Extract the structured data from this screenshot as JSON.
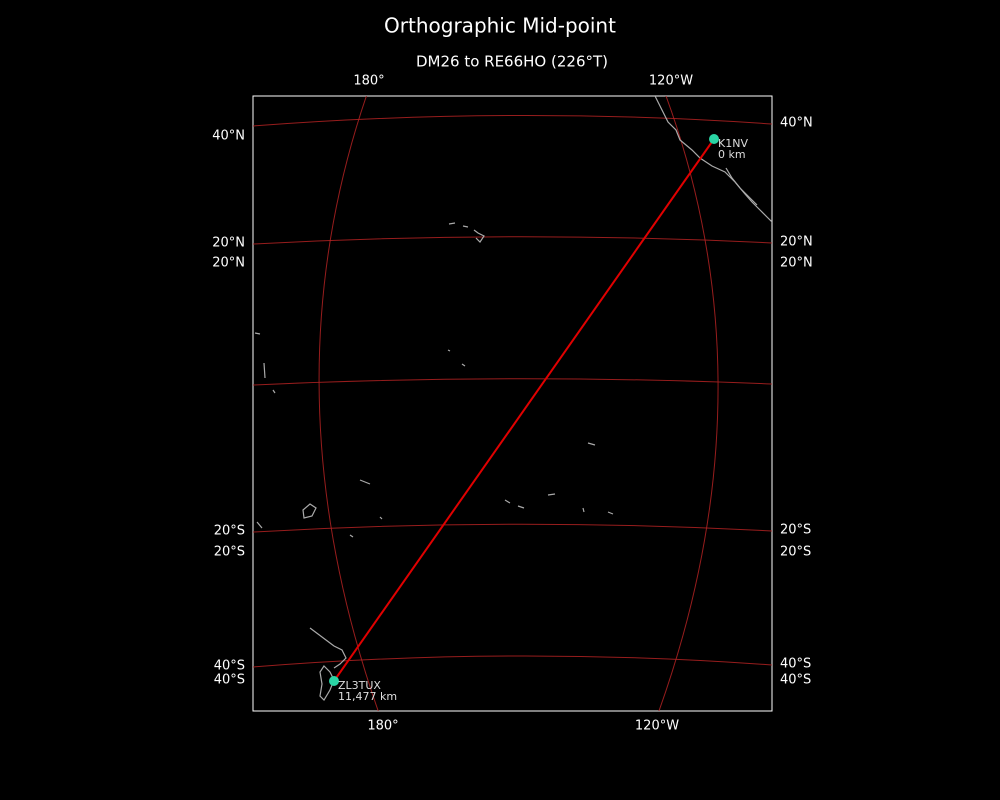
{
  "title": "Orthographic Mid-point",
  "subtitle": "DM26 to RE66HO (226°T)",
  "map": {
    "top_labels": [
      "180°",
      "120°W"
    ],
    "bottom_labels": [
      "180°",
      "120°W"
    ],
    "left_labels": [
      "40°N",
      "20°N",
      "20°N",
      "20°S",
      "20°S",
      "40°S",
      "40°S"
    ],
    "right_labels": [
      "40°N",
      "20°N",
      "20°N",
      "20°S",
      "20°S",
      "40°S",
      "40°S"
    ],
    "stations": [
      {
        "call": "K1NV",
        "distance": "0 km"
      },
      {
        "call": "ZL3TUX",
        "distance": "11,477 km"
      }
    ]
  }
}
